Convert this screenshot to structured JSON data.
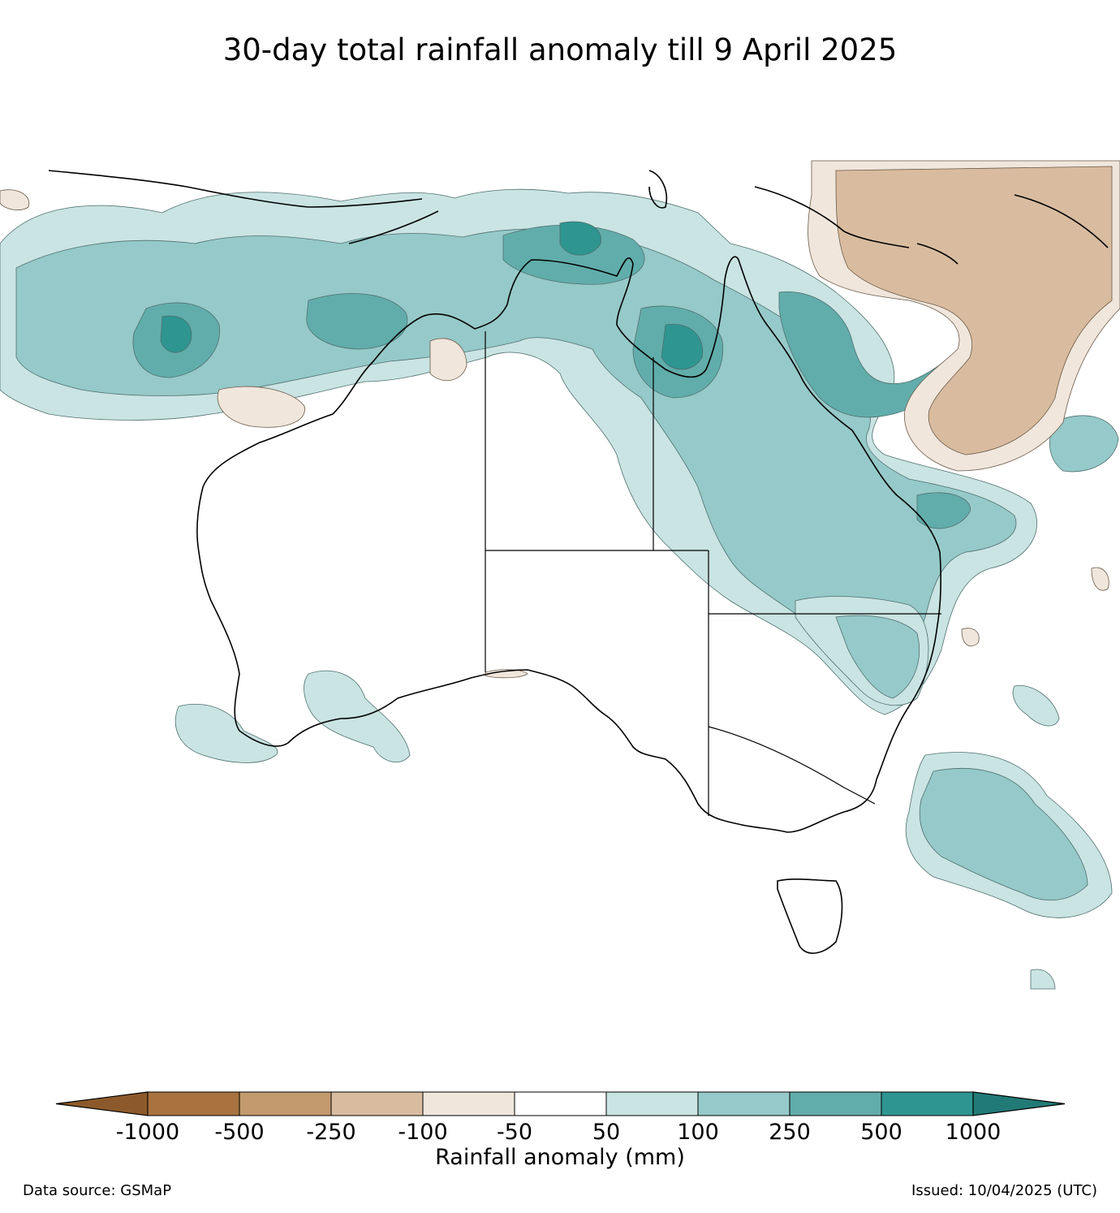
{
  "title": "30-day total rainfall anomaly till 9 April 2025",
  "legend": {
    "title": "Rainfall anomaly (mm)",
    "ticks": [
      "-1000",
      "-500",
      "-250",
      "-100",
      "-50",
      "50",
      "100",
      "250",
      "500",
      "1000"
    ],
    "bins": [
      {
        "label": "< -1000",
        "color": "#8c5a2a"
      },
      {
        "label": "-1000 to -500",
        "color": "#a8733e"
      },
      {
        "label": "-500 to -250",
        "color": "#c29a6e"
      },
      {
        "label": "-250 to -100",
        "color": "#d9bca0"
      },
      {
        "label": "-100 to -50",
        "color": "#f0e6dc"
      },
      {
        "label": "-50 to 50",
        "color": "#ffffff"
      },
      {
        "label": "50 to 100",
        "color": "#c9e4e2"
      },
      {
        "label": "100 to 250",
        "color": "#96c9c9"
      },
      {
        "label": "250 to 500",
        "color": "#61adab"
      },
      {
        "label": "500 to 1000",
        "color": "#2e9590"
      },
      {
        "label": "> 1000",
        "color": "#227a76"
      }
    ]
  },
  "footer": {
    "data_source": "Data source: GSMaP",
    "issued": "Issued: 10/04/2025 (UTC)"
  }
}
